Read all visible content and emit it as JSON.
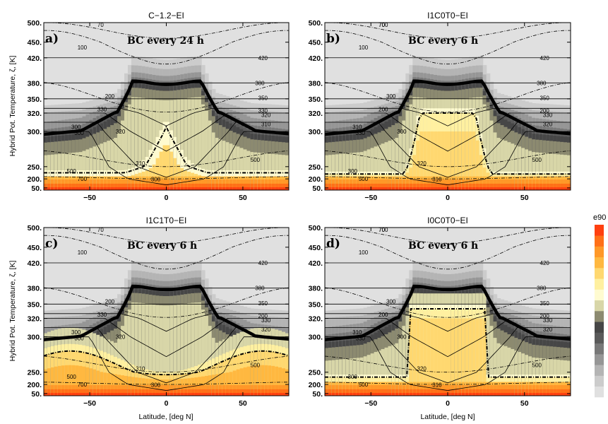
{
  "colorbar": {
    "label": "e90"
  },
  "axes": {
    "ylabel": "Hybrid Pot. Temperature, ζ, [K]",
    "xlabel": "Latitude, [deg N]",
    "yticks": [
      50,
      200,
      250,
      300,
      320,
      350,
      380,
      420,
      450,
      500
    ],
    "ytick_labels": [
      "50.",
      "200.",
      "250.",
      "300.",
      "320.",
      "350.",
      "380.",
      "420.",
      "450.",
      "500."
    ],
    "xticks": [
      -50,
      0,
      50
    ],
    "xtick_labels": [
      "−50",
      "0",
      "50"
    ],
    "xlim": [
      -80,
      80
    ]
  },
  "colors": {
    "tropopause": "#000000",
    "colormap": [
      "#e0e0e0",
      "#cccccc",
      "#b4b4b4",
      "#969696",
      "#787878",
      "#5a5a5a",
      "#464646",
      "#8c8a70",
      "#d8d6a8",
      "#fffbd0",
      "#fff0a0",
      "#ffd870",
      "#ffb840",
      "#ff9828",
      "#ff7018",
      "#ff4010"
    ]
  },
  "chart_data": [
    {
      "type": "heatmap",
      "panel": "a)",
      "title": "C−1.2−EI",
      "annotation": "BC every 24 h",
      "contour_labels": [
        "70",
        "100",
        "420",
        "380",
        "350",
        "330",
        "320",
        "310",
        "300",
        "200",
        "330",
        "300",
        "320",
        "310",
        "300",
        "500",
        "500",
        "700"
      ]
    },
    {
      "type": "heatmap",
      "panel": "b)",
      "title": "I1C0T0−EI",
      "annotation": "BC every 6 h",
      "contour_labels": [
        "70",
        "100",
        "420",
        "380",
        "350",
        "200",
        "330",
        "320",
        "310",
        "300",
        "200",
        "330",
        "300",
        "320",
        "310",
        "300",
        "500",
        "500",
        "700"
      ]
    },
    {
      "type": "heatmap",
      "panel": "c)",
      "title": "I1C1T0−EI",
      "annotation": "BC every 6 h",
      "contour_labels": [
        "70",
        "100",
        "420",
        "380",
        "350",
        "200",
        "330",
        "320",
        "300",
        "200",
        "330",
        "300",
        "320",
        "310",
        "300",
        "500",
        "500",
        "700"
      ]
    },
    {
      "type": "heatmap",
      "panel": "d)",
      "title": "I0C0T0−EI",
      "annotation": "BC every 6 h",
      "contour_labels": [
        "70",
        "100",
        "420",
        "380",
        "350",
        "200",
        "330",
        "320",
        "310",
        "300",
        "200",
        "330",
        "300",
        "320",
        "310",
        "300",
        "500",
        "500",
        "700"
      ]
    }
  ]
}
